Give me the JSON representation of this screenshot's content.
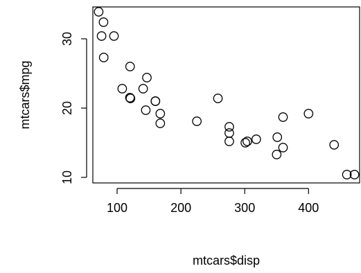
{
  "chart_data": {
    "type": "scatter",
    "xlabel": "mtcars$disp",
    "ylabel": "mtcars$mpg",
    "xlim": [
      62.0,
      480.0
    ],
    "ylim": [
      9.2,
      34.6
    ],
    "x_ticks": [
      100,
      200,
      300,
      400
    ],
    "y_ticks": [
      10,
      20,
      30
    ],
    "grid": false,
    "points": [
      {
        "x": 160.0,
        "y": 21.0
      },
      {
        "x": 160.0,
        "y": 21.0
      },
      {
        "x": 108.0,
        "y": 22.8
      },
      {
        "x": 258.0,
        "y": 21.4
      },
      {
        "x": 360.0,
        "y": 18.7
      },
      {
        "x": 225.0,
        "y": 18.1
      },
      {
        "x": 360.0,
        "y": 14.3
      },
      {
        "x": 146.7,
        "y": 24.4
      },
      {
        "x": 140.8,
        "y": 22.8
      },
      {
        "x": 167.6,
        "y": 19.2
      },
      {
        "x": 167.6,
        "y": 17.8
      },
      {
        "x": 275.8,
        "y": 16.4
      },
      {
        "x": 275.8,
        "y": 17.3
      },
      {
        "x": 275.8,
        "y": 15.2
      },
      {
        "x": 472.0,
        "y": 10.4
      },
      {
        "x": 460.0,
        "y": 10.4
      },
      {
        "x": 440.0,
        "y": 14.7
      },
      {
        "x": 78.7,
        "y": 32.4
      },
      {
        "x": 75.7,
        "y": 30.4
      },
      {
        "x": 71.1,
        "y": 33.9
      },
      {
        "x": 120.1,
        "y": 21.5
      },
      {
        "x": 318.0,
        "y": 15.5
      },
      {
        "x": 304.0,
        "y": 15.2
      },
      {
        "x": 350.0,
        "y": 13.3
      },
      {
        "x": 400.0,
        "y": 19.2
      },
      {
        "x": 79.0,
        "y": 27.3
      },
      {
        "x": 120.3,
        "y": 26.0
      },
      {
        "x": 95.1,
        "y": 30.4
      },
      {
        "x": 351.0,
        "y": 15.8
      },
      {
        "x": 145.0,
        "y": 19.7
      },
      {
        "x": 301.0,
        "y": 15.0
      },
      {
        "x": 121.0,
        "y": 21.4
      }
    ]
  }
}
